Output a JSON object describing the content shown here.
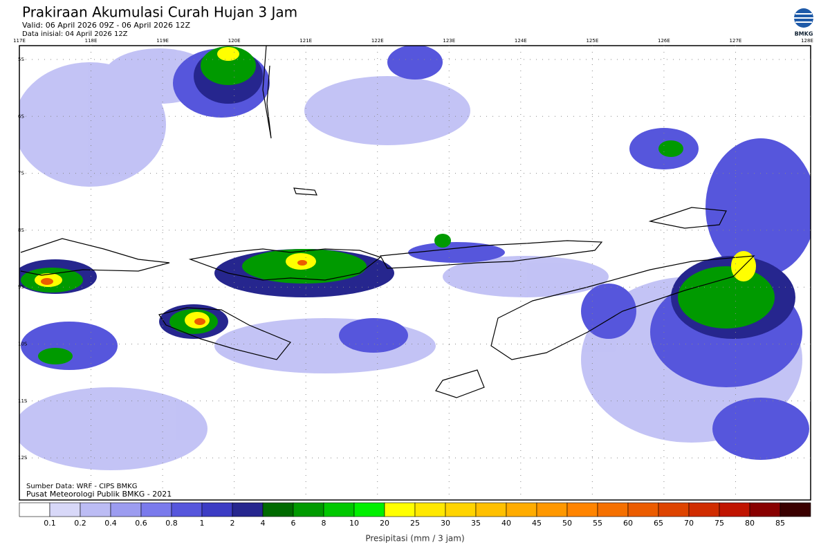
{
  "header": {
    "title": "Prakiraan Akumulasi Curah Hujan 3 Jam",
    "valid": "Valid: 06 April 2026 09Z - 06 April 2026 12Z",
    "initial": "Data inisial: 04 April 2026 12Z",
    "logo": "BMKG"
  },
  "map": {
    "lon_labels": [
      "117E",
      "118E",
      "119E",
      "120E",
      "121E",
      "122E",
      "123E",
      "124E",
      "125E",
      "126E",
      "127E",
      "128E"
    ],
    "lat_labels": [
      "5S",
      "6S",
      "7S",
      "8S",
      "9S",
      "10S",
      "11S",
      "12S"
    ],
    "source": "Sumber Data: WRF - CIPS BMKG",
    "credit": "Pusat Meteorologi Publik BMKG - 2021"
  },
  "legend": {
    "labels": [
      "0.1",
      "0.2",
      "0.4",
      "0.6",
      "0.8",
      "1",
      "2",
      "4",
      "6",
      "8",
      "10",
      "20",
      "25",
      "30",
      "35",
      "40",
      "45",
      "50",
      "55",
      "60",
      "65",
      "70",
      "75",
      "80",
      "85"
    ],
    "colors": [
      "#ffffff",
      "#d8d8f8",
      "#bcbcf4",
      "#9c9cf0",
      "#7a7aec",
      "#5656dc",
      "#3c3cc4",
      "#26268e",
      "#006a00",
      "#009a00",
      "#00c800",
      "#00f000",
      "#ffff00",
      "#ffe800",
      "#ffd400",
      "#ffc000",
      "#ffac00",
      "#ff9800",
      "#ff8400",
      "#f57000",
      "#eb5c00",
      "#de4400",
      "#d02c00",
      "#c01400",
      "#880000",
      "#3a0000"
    ],
    "axis_label": "Presipitasi (mm / 3 jam)"
  }
}
